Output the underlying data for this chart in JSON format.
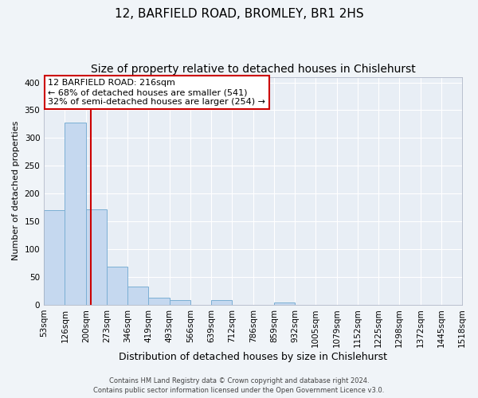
{
  "title": "12, BARFIELD ROAD, BROMLEY, BR1 2HS",
  "subtitle": "Size of property relative to detached houses in Chislehurst",
  "xlabel": "Distribution of detached houses by size in Chislehurst",
  "ylabel": "Number of detached properties",
  "bin_edges": [
    53,
    126,
    200,
    273,
    346,
    419,
    493,
    566,
    639,
    712,
    786,
    859,
    932,
    1005,
    1079,
    1152,
    1225,
    1298,
    1372,
    1445,
    1518
  ],
  "bin_labels": [
    "53sqm",
    "126sqm",
    "200sqm",
    "273sqm",
    "346sqm",
    "419sqm",
    "493sqm",
    "566sqm",
    "639sqm",
    "712sqm",
    "786sqm",
    "859sqm",
    "932sqm",
    "1005sqm",
    "1079sqm",
    "1152sqm",
    "1225sqm",
    "1298sqm",
    "1372sqm",
    "1445sqm",
    "1518sqm"
  ],
  "bar_heights": [
    170,
    328,
    172,
    68,
    33,
    13,
    9,
    0,
    8,
    0,
    0,
    4,
    0,
    0,
    0,
    0,
    0,
    0,
    0,
    0
  ],
  "bar_color": "#c5d8ef",
  "bar_edge_color": "#7bafd4",
  "vline_x": 216,
  "vline_color": "#cc0000",
  "ylim": [
    0,
    410
  ],
  "yticks": [
    0,
    50,
    100,
    150,
    200,
    250,
    300,
    350,
    400
  ],
  "annotation_title": "12 BARFIELD ROAD: 216sqm",
  "annotation_line1": "← 68% of detached houses are smaller (541)",
  "annotation_line2": "32% of semi-detached houses are larger (254) →",
  "annotation_box_color": "#ffffff",
  "annotation_box_edge_color": "#cc0000",
  "footer_line1": "Contains HM Land Registry data © Crown copyright and database right 2024.",
  "footer_line2": "Contains public sector information licensed under the Open Government Licence v3.0.",
  "plot_bg_color": "#e8eef5",
  "fig_bg_color": "#f0f4f8",
  "title_fontsize": 11,
  "subtitle_fontsize": 10,
  "xlabel_fontsize": 9,
  "ylabel_fontsize": 8,
  "tick_label_fontsize": 7.5,
  "annotation_fontsize": 8,
  "footer_fontsize": 6
}
